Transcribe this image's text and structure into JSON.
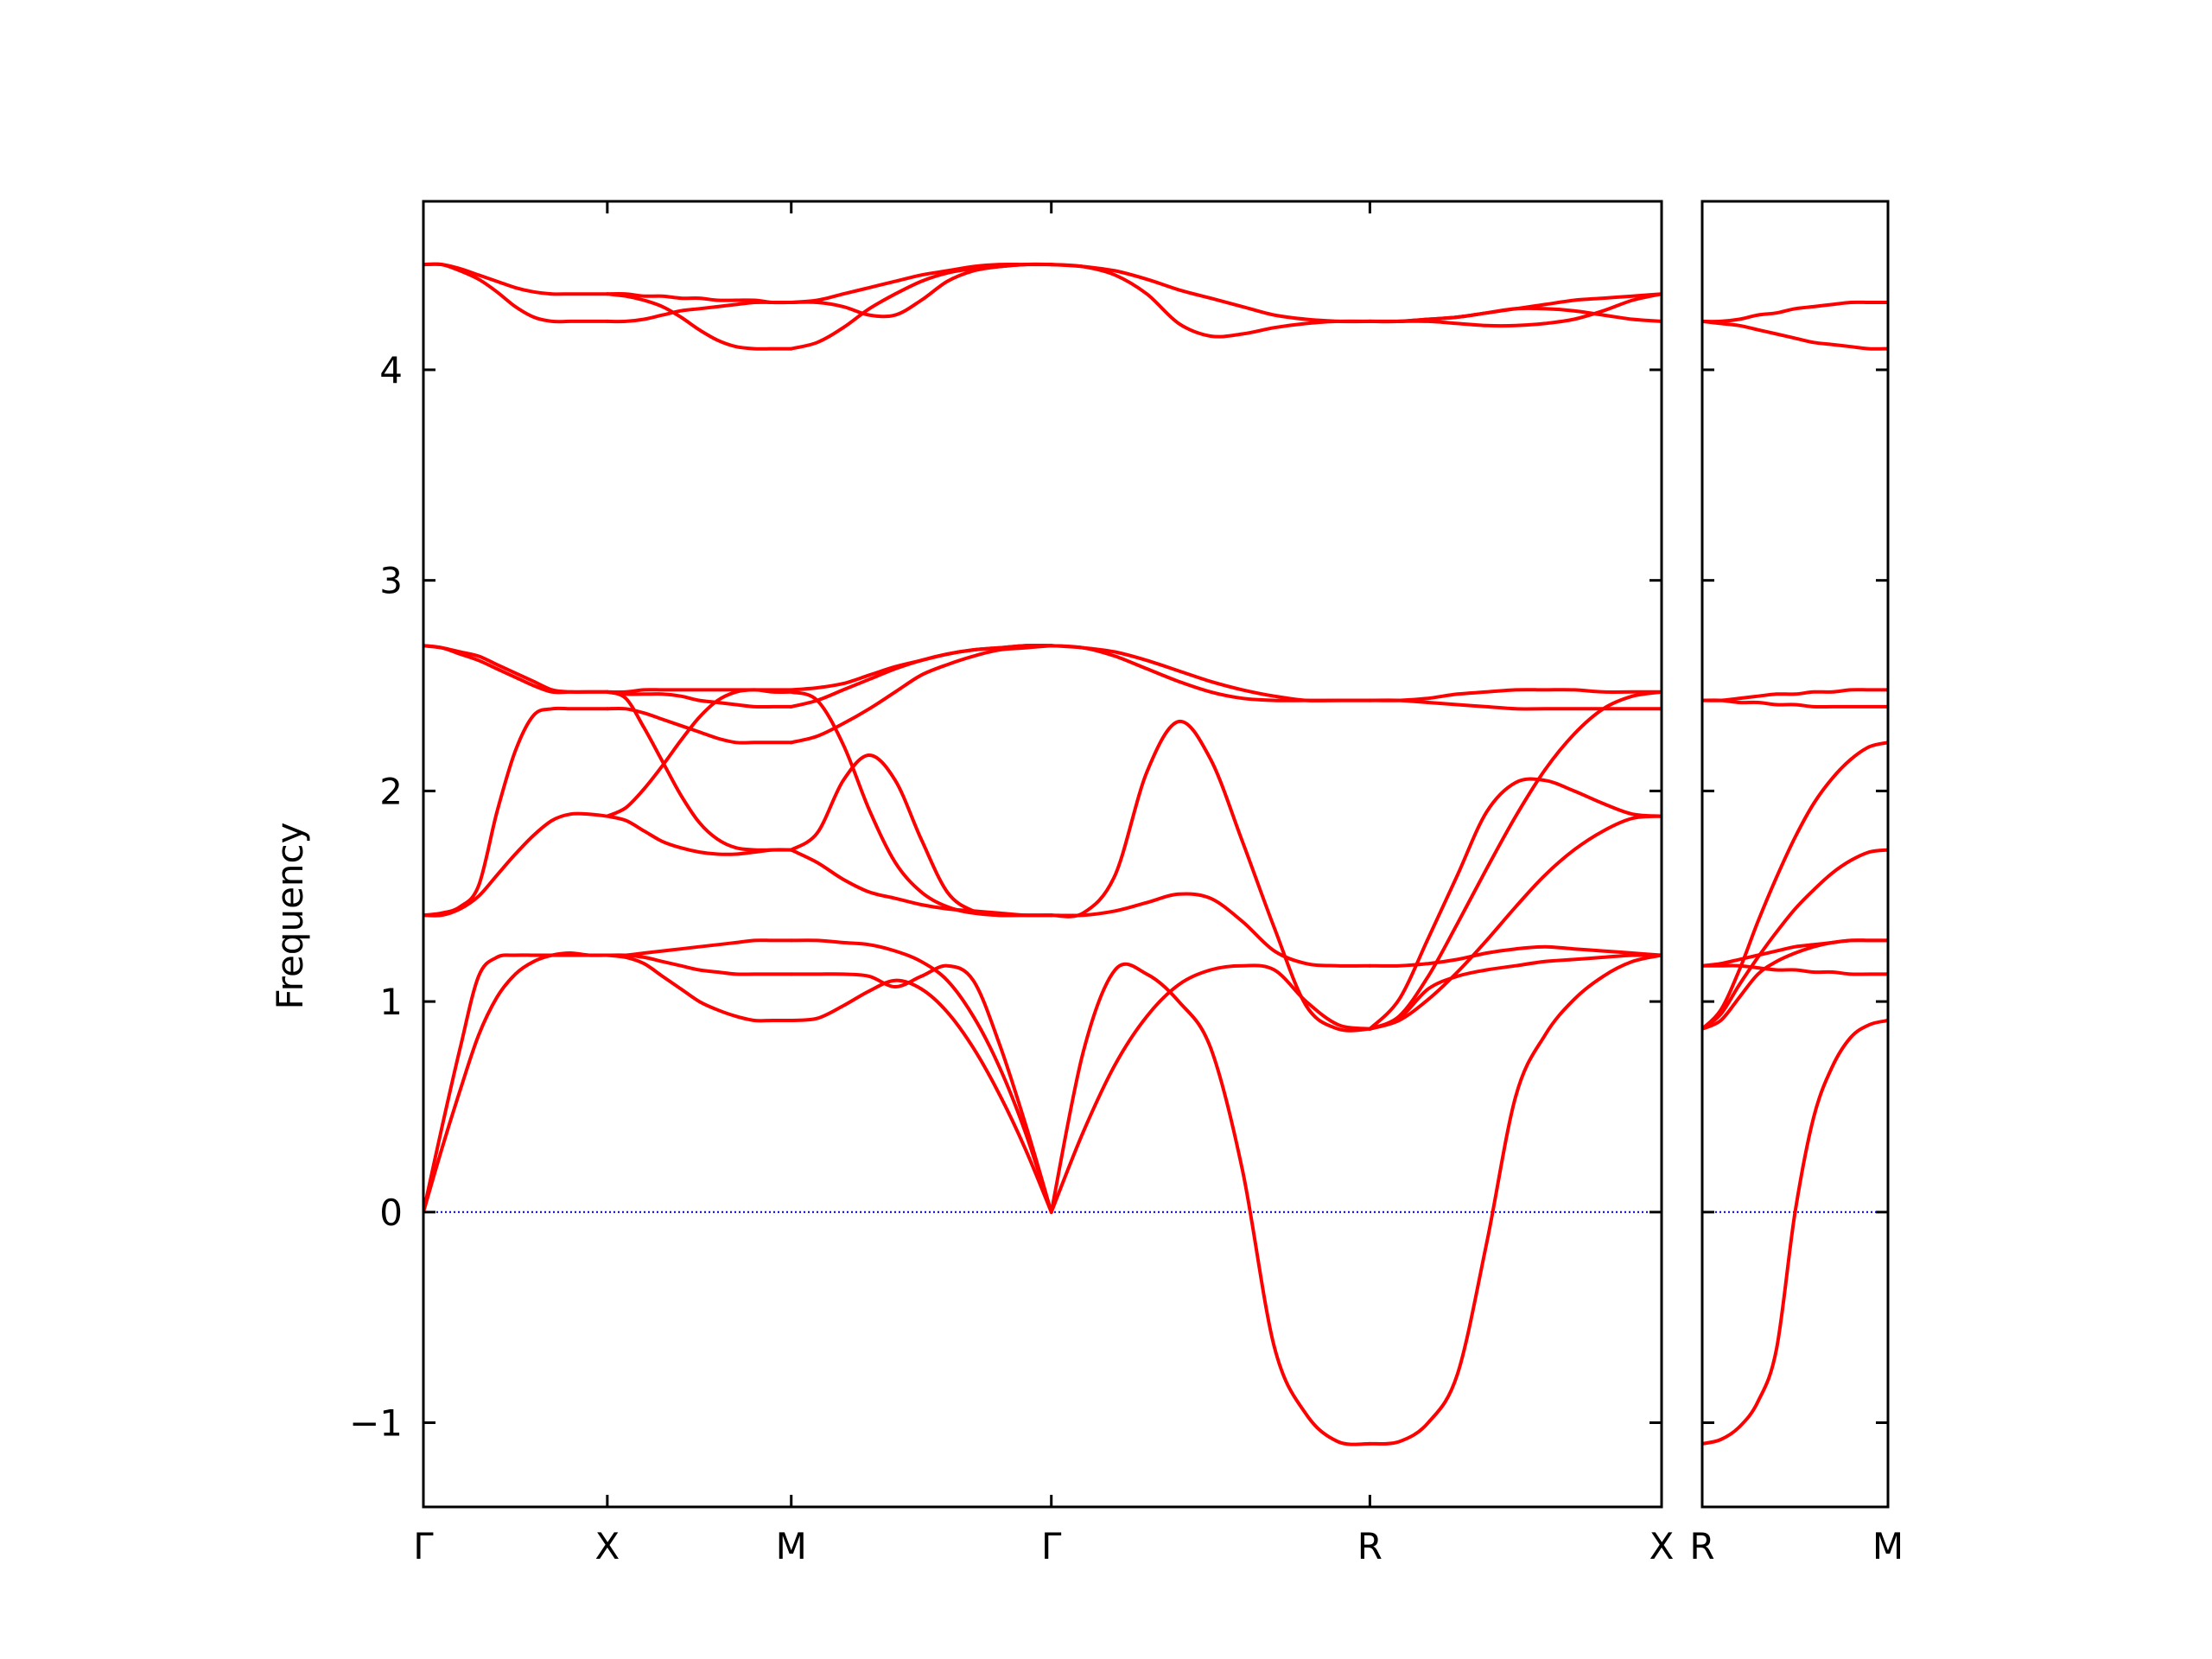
{
  "chart_data": {
    "type": "line",
    "title": "",
    "ylabel": "Frequency",
    "xlabel": "",
    "ylim": [
      -1.4,
      4.8
    ],
    "yticks": [
      -1,
      0,
      1,
      2,
      3,
      4
    ],
    "ytick_labels": [
      "−1",
      "0",
      "1",
      "2",
      "3",
      "4"
    ],
    "band_color": "#ff0000",
    "zero_line_color": "#0000cc",
    "grid": false,
    "legend": "none",
    "panels": [
      {
        "xlim": [
          0,
          3.366
        ],
        "ticks": [
          {
            "x": 0,
            "label": "Γ"
          },
          {
            "x": 0.5,
            "label": "X"
          },
          {
            "x": 1.0,
            "label": "M"
          },
          {
            "x": 1.707,
            "label": "Γ"
          },
          {
            "x": 2.573,
            "label": "R"
          },
          {
            "x": 3.366,
            "label": "X"
          }
        ],
        "segments": [
          {
            "x": [
              0,
              0.05,
              0.1,
              0.15,
              0.2,
              0.25,
              0.3,
              0.35,
              0.4,
              0.45,
              0.5
            ],
            "bands": [
              [
                0,
                0.4,
                0.78,
                1.12,
                1.21,
                1.22,
                1.22,
                1.22,
                1.22,
                1.22,
                1.22
              ],
              [
                0,
                0.3,
                0.58,
                0.84,
                1.02,
                1.13,
                1.19,
                1.22,
                1.23,
                1.22,
                1.22
              ],
              [
                1.41,
                1.42,
                1.45,
                1.55,
                1.9,
                2.19,
                2.36,
                2.39,
                2.39,
                2.39,
                2.39
              ],
              [
                1.41,
                1.41,
                1.44,
                1.5,
                1.6,
                1.7,
                1.79,
                1.86,
                1.89,
                1.89,
                1.88
              ],
              [
                2.69,
                2.68,
                2.65,
                2.62,
                2.58,
                2.54,
                2.5,
                2.47,
                2.47,
                2.47,
                2.47
              ],
              [
                2.69,
                2.68,
                2.66,
                2.64,
                2.6,
                2.56,
                2.52,
                2.48,
                2.47,
                2.47,
                2.47
              ],
              [
                4.5,
                4.5,
                4.47,
                4.43,
                4.37,
                4.3,
                4.25,
                4.23,
                4.23,
                4.23,
                4.23
              ],
              [
                4.5,
                4.5,
                4.48,
                4.45,
                4.42,
                4.39,
                4.37,
                4.36,
                4.36,
                4.36,
                4.36
              ]
            ]
          },
          {
            "x": [
              0.5,
              0.55,
              0.6,
              0.65,
              0.7,
              0.75,
              0.8,
              0.85,
              0.9,
              0.95,
              1.0
            ],
            "bands": [
              [
                1.22,
                1.22,
                1.23,
                1.24,
                1.25,
                1.26,
                1.27,
                1.28,
                1.29,
                1.29,
                1.29
              ],
              [
                1.22,
                1.22,
                1.21,
                1.19,
                1.17,
                1.15,
                1.14,
                1.13,
                1.13,
                1.13,
                1.13
              ],
              [
                1.22,
                1.21,
                1.18,
                1.12,
                1.06,
                1.0,
                0.96,
                0.93,
                0.91,
                0.91,
                0.91
              ],
              [
                1.88,
                1.86,
                1.81,
                1.76,
                1.73,
                1.71,
                1.7,
                1.7,
                1.71,
                1.72,
                1.72
              ],
              [
                1.88,
                1.92,
                2.01,
                2.12,
                2.24,
                2.35,
                2.43,
                2.47,
                2.48,
                2.47,
                2.47
              ],
              [
                2.47,
                2.44,
                2.3,
                2.14,
                1.98,
                1.85,
                1.77,
                1.73,
                1.72,
                1.72,
                1.72
              ],
              [
                2.39,
                2.39,
                2.37,
                2.34,
                2.31,
                2.28,
                2.25,
                2.23,
                2.23,
                2.23,
                2.23
              ],
              [
                2.47,
                2.46,
                2.46,
                2.46,
                2.45,
                2.43,
                2.42,
                2.41,
                2.4,
                2.4,
                2.4
              ],
              [
                2.47,
                2.47,
                2.48,
                2.48,
                2.48,
                2.48,
                2.48,
                2.48,
                2.48,
                2.48,
                2.48
              ],
              [
                4.23,
                4.23,
                4.24,
                4.26,
                4.28,
                4.29,
                4.3,
                4.31,
                4.32,
                4.32,
                4.32
              ],
              [
                4.36,
                4.36,
                4.35,
                4.35,
                4.34,
                4.34,
                4.33,
                4.33,
                4.33,
                4.32,
                4.32
              ],
              [
                4.36,
                4.35,
                4.33,
                4.3,
                4.25,
                4.19,
                4.14,
                4.11,
                4.1,
                4.1,
                4.1
              ]
            ]
          },
          {
            "x": [
              1.0,
              1.0707,
              1.1414,
              1.2121,
              1.2828,
              1.3535,
              1.4242,
              1.4949,
              1.5656,
              1.6363,
              1.707
            ],
            "bands": [
              [
                1.29,
                1.29,
                1.28,
                1.27,
                1.24,
                1.19,
                1.1,
                0.93,
                0.69,
                0.38,
                0
              ],
              [
                1.13,
                1.13,
                1.13,
                1.12,
                1.07,
                1.12,
                1.17,
                1.1,
                0.8,
                0.42,
                0
              ],
              [
                0.91,
                0.92,
                0.98,
                1.05,
                1.1,
                1.06,
                0.95,
                0.78,
                0.56,
                0.3,
                0
              ],
              [
                1.72,
                1.66,
                1.58,
                1.52,
                1.49,
                1.46,
                1.44,
                1.43,
                1.42,
                1.41,
                1.41
              ],
              [
                1.72,
                1.8,
                2.05,
                2.17,
                2.05,
                1.77,
                1.52,
                1.43,
                1.41,
                1.41,
                1.41
              ],
              [
                2.47,
                2.43,
                2.22,
                1.91,
                1.66,
                1.52,
                1.45,
                1.42,
                1.41,
                1.41,
                1.41
              ],
              [
                2.23,
                2.26,
                2.32,
                2.39,
                2.47,
                2.55,
                2.6,
                2.64,
                2.67,
                2.68,
                2.69
              ],
              [
                2.4,
                2.43,
                2.48,
                2.53,
                2.58,
                2.62,
                2.65,
                2.67,
                2.68,
                2.69,
                2.69
              ],
              [
                2.48,
                2.49,
                2.51,
                2.55,
                2.59,
                2.62,
                2.65,
                2.67,
                2.68,
                2.69,
                2.69
              ],
              [
                4.32,
                4.33,
                4.36,
                4.39,
                4.42,
                4.45,
                4.47,
                4.49,
                4.5,
                4.5,
                4.5
              ],
              [
                4.32,
                4.32,
                4.3,
                4.26,
                4.26,
                4.33,
                4.42,
                4.47,
                4.49,
                4.5,
                4.5
              ],
              [
                4.1,
                4.13,
                4.2,
                4.29,
                4.36,
                4.42,
                4.46,
                4.48,
                4.49,
                4.5,
                4.5
              ]
            ]
          },
          {
            "x": [
              1.707,
              1.7936,
              1.8802,
              1.9668,
              2.0534,
              2.14,
              2.2266,
              2.3132,
              2.3998,
              2.4864,
              2.573
            ],
            "bands": [
              [
                0,
                0.38,
                0.7,
                0.93,
                1.08,
                1.15,
                1.17,
                1.15,
                1.0,
                0.89,
                0.87
              ],
              [
                0,
                0.76,
                1.15,
                1.13,
                1.0,
                0.78,
                0.2,
                -0.64,
                -0.96,
                -1.09,
                -1.1
              ],
              [
                1.41,
                1.41,
                1.43,
                1.47,
                1.51,
                1.49,
                1.38,
                1.24,
                1.18,
                1.17,
                1.17
              ],
              [
                1.41,
                1.42,
                1.6,
                2.09,
                2.33,
                2.15,
                1.76,
                1.35,
                0.98,
                0.87,
                0.87
              ],
              [
                2.69,
                2.68,
                2.66,
                2.62,
                2.57,
                2.52,
                2.48,
                2.45,
                2.43,
                2.43,
                2.43
              ],
              [
                2.69,
                2.68,
                2.64,
                2.58,
                2.52,
                2.47,
                2.44,
                2.43,
                2.43,
                2.43,
                2.43
              ],
              [
                4.5,
                4.49,
                4.45,
                4.36,
                4.22,
                4.16,
                4.17,
                4.2,
                4.22,
                4.23,
                4.23
              ],
              [
                4.5,
                4.49,
                4.47,
                4.43,
                4.38,
                4.34,
                4.3,
                4.26,
                4.24,
                4.23,
                4.23
              ]
            ]
          },
          {
            "x": [
              2.573,
              2.6523,
              2.7316,
              2.8109,
              2.8902,
              2.9695,
              3.0488,
              3.1281,
              3.2074,
              3.2867,
              3.366
            ],
            "bands": [
              [
                -1.1,
                -1.09,
                -1.0,
                -0.77,
                -0.15,
                0.55,
                0.84,
                1.01,
                1.12,
                1.19,
                1.22
              ],
              [
                0.87,
                0.92,
                1.06,
                1.12,
                1.15,
                1.17,
                1.19,
                1.2,
                1.21,
                1.22,
                1.22
              ],
              [
                0.87,
                0.91,
                1.01,
                1.14,
                1.29,
                1.45,
                1.6,
                1.72,
                1.81,
                1.87,
                1.88
              ],
              [
                0.87,
                1.01,
                1.3,
                1.6,
                1.9,
                2.04,
                2.05,
                2.0,
                1.94,
                1.89,
                1.88
              ],
              [
                0.87,
                0.93,
                1.12,
                1.37,
                1.63,
                1.88,
                2.1,
                2.27,
                2.39,
                2.45,
                2.47
              ],
              [
                1.17,
                1.17,
                1.18,
                1.2,
                1.23,
                1.25,
                1.26,
                1.25,
                1.24,
                1.23,
                1.22
              ],
              [
                2.43,
                2.43,
                2.42,
                2.41,
                2.4,
                2.39,
                2.39,
                2.39,
                2.39,
                2.39,
                2.39
              ],
              [
                2.43,
                2.43,
                2.44,
                2.46,
                2.47,
                2.48,
                2.48,
                2.48,
                2.47,
                2.47,
                2.47
              ],
              [
                4.23,
                4.23,
                4.23,
                4.22,
                4.21,
                4.21,
                4.22,
                4.24,
                4.28,
                4.33,
                4.36
              ],
              [
                4.23,
                4.23,
                4.24,
                4.25,
                4.27,
                4.29,
                4.31,
                4.33,
                4.34,
                4.35,
                4.36
              ],
              [
                4.23,
                4.23,
                4.24,
                4.25,
                4.27,
                4.29,
                4.29,
                4.28,
                4.26,
                4.24,
                4.23
              ]
            ]
          }
        ]
      },
      {
        "xlim": [
          0,
          0.5
        ],
        "ticks": [
          {
            "x": 0,
            "label": "R"
          },
          {
            "x": 0.5,
            "label": "M"
          }
        ],
        "segments": [
          {
            "x": [
              0,
              0.05,
              0.1,
              0.15,
              0.2,
              0.25,
              0.3,
              0.35,
              0.4,
              0.45,
              0.5
            ],
            "bands": [
              [
                -1.1,
                -1.08,
                -1.02,
                -0.9,
                -0.65,
                0.0,
                0.45,
                0.69,
                0.83,
                0.89,
                0.91
              ],
              [
                0.87,
                0.91,
                1.02,
                1.13,
                1.19,
                1.23,
                1.26,
                1.28,
                1.29,
                1.29,
                1.29
              ],
              [
                0.87,
                0.94,
                1.08,
                1.21,
                1.33,
                1.44,
                1.53,
                1.61,
                1.67,
                1.71,
                1.72
              ],
              [
                0.87,
                0.96,
                1.15,
                1.38,
                1.59,
                1.78,
                1.94,
                2.06,
                2.15,
                2.21,
                2.23
              ],
              [
                1.17,
                1.17,
                1.17,
                1.16,
                1.15,
                1.15,
                1.14,
                1.14,
                1.13,
                1.13,
                1.13
              ],
              [
                1.17,
                1.18,
                1.2,
                1.22,
                1.24,
                1.26,
                1.27,
                1.28,
                1.29,
                1.29,
                1.29
              ],
              [
                2.43,
                2.43,
                2.42,
                2.42,
                2.41,
                2.41,
                2.4,
                2.4,
                2.4,
                2.4,
                2.4
              ],
              [
                2.43,
                2.43,
                2.44,
                2.45,
                2.46,
                2.46,
                2.47,
                2.47,
                2.48,
                2.48,
                2.48
              ],
              [
                4.23,
                4.23,
                4.24,
                4.26,
                4.27,
                4.29,
                4.3,
                4.31,
                4.32,
                4.32,
                4.32
              ],
              [
                4.23,
                4.22,
                4.21,
                4.19,
                4.17,
                4.15,
                4.13,
                4.12,
                4.11,
                4.1,
                4.1
              ]
            ]
          }
        ]
      }
    ]
  }
}
